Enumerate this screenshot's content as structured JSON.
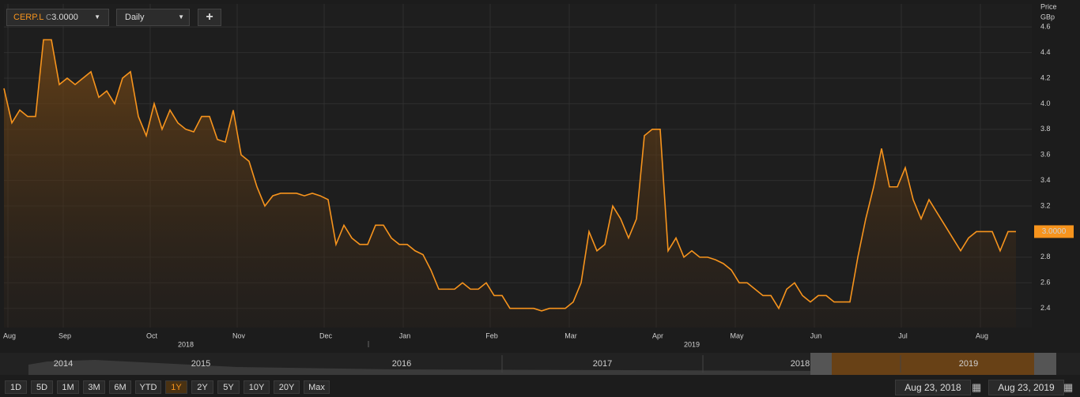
{
  "header": {
    "ticker": "CERP.L",
    "close_label": "C",
    "close_value": "3.0000",
    "interval": "Daily",
    "add_button": "+"
  },
  "chart_data": {
    "type": "line",
    "y_axis_title": [
      "Price",
      "GBp"
    ],
    "categories": [
      null,
      "Aug",
      null,
      null,
      null,
      null,
      null,
      null,
      "Sep",
      null,
      null,
      null,
      null,
      null,
      null,
      null,
      null,
      null,
      null,
      "Oct",
      null,
      null,
      null,
      null,
      null,
      null,
      null,
      null,
      null,
      null,
      "Nov",
      null,
      null,
      null,
      null,
      null,
      null,
      null,
      null,
      null,
      null,
      "Dec",
      null,
      null,
      null,
      null,
      null,
      null,
      null,
      null,
      null,
      "Jan",
      null,
      null,
      null,
      null,
      null,
      null,
      null,
      null,
      null,
      null,
      "Feb",
      null,
      null,
      null,
      null,
      null,
      null,
      null,
      null,
      null,
      "Mar",
      null,
      null,
      null,
      null,
      null,
      null,
      null,
      null,
      null,
      null,
      "Apr",
      null,
      null,
      null,
      null,
      null,
      null,
      null,
      null,
      null,
      "May",
      null,
      null,
      null,
      null,
      null,
      null,
      null,
      null,
      null,
      "Jun",
      null,
      null,
      null,
      null,
      null,
      null,
      null,
      null,
      null,
      null,
      "Jul",
      null,
      null,
      null,
      null,
      null,
      null,
      null,
      null,
      null,
      "Aug",
      null,
      null,
      null,
      null
    ],
    "year_labels": [
      null,
      null,
      null,
      null,
      null,
      null,
      null,
      null,
      null,
      null,
      null,
      null,
      null,
      null,
      null,
      null,
      null,
      null,
      null,
      null,
      null,
      null,
      null,
      "2018",
      null,
      null,
      null,
      null,
      null,
      null,
      null,
      null,
      null,
      null,
      null,
      null,
      null,
      null,
      null,
      null,
      null,
      null,
      null,
      null,
      null,
      null,
      null,
      null,
      null,
      null,
      null,
      null,
      null,
      null,
      null,
      null,
      null,
      null,
      null,
      null,
      null,
      null,
      null,
      null,
      null,
      null,
      null,
      null,
      null,
      null,
      null,
      null,
      null,
      null,
      null,
      null,
      null,
      null,
      null,
      null,
      null,
      null,
      null,
      null,
      null,
      null,
      null,
      "2019",
      null,
      null,
      null,
      null,
      null,
      null,
      null,
      null,
      null,
      null,
      null,
      null,
      null,
      null,
      null,
      null,
      null,
      null,
      null,
      null,
      null,
      null,
      null,
      null,
      null,
      null,
      null,
      null,
      null,
      null,
      null,
      null,
      null,
      null,
      null,
      null,
      null,
      null,
      null,
      null,
      null,
      null,
      null,
      null,
      null
    ],
    "series": [
      {
        "name": "CERP.L",
        "color": "#f7941d",
        "values": [
          4.12,
          3.85,
          3.95,
          3.9,
          3.9,
          4.5,
          4.5,
          4.15,
          4.2,
          4.15,
          4.2,
          4.25,
          4.05,
          4.1,
          4.0,
          4.2,
          4.25,
          3.9,
          3.75,
          4.0,
          3.8,
          3.95,
          3.85,
          3.8,
          3.78,
          3.9,
          3.9,
          3.72,
          3.7,
          3.95,
          3.6,
          3.55,
          3.35,
          3.2,
          3.28,
          3.3,
          3.3,
          3.3,
          3.28,
          3.3,
          3.28,
          3.25,
          2.9,
          3.05,
          2.95,
          2.9,
          2.9,
          3.05,
          3.05,
          2.95,
          2.9,
          2.9,
          2.85,
          2.82,
          2.7,
          2.55,
          2.55,
          2.55,
          2.6,
          2.55,
          2.55,
          2.6,
          2.5,
          2.5,
          2.4,
          2.4,
          2.4,
          2.4,
          2.38,
          2.4,
          2.4,
          2.4,
          2.45,
          2.6,
          3.0,
          2.85,
          2.9,
          3.2,
          3.1,
          2.95,
          3.1,
          3.75,
          3.8,
          3.8,
          2.85,
          2.95,
          2.8,
          2.85,
          2.8,
          2.8,
          2.78,
          2.75,
          2.7,
          2.6,
          2.6,
          2.55,
          2.5,
          2.5,
          2.4,
          2.55,
          2.6,
          2.5,
          2.45,
          2.5,
          2.5,
          2.45,
          2.45,
          2.45,
          2.8,
          3.1,
          3.35,
          3.65,
          3.35,
          3.35,
          3.5,
          3.25,
          3.1,
          3.25,
          3.15,
          3.05,
          2.95,
          2.85,
          2.95,
          3.0,
          3.0,
          3.0,
          2.85,
          3.0,
          3.0
        ]
      }
    ],
    "last_value_label": "3.0000",
    "ylim": [
      2.25,
      4.78
    ],
    "yticks": [
      2.4,
      2.6,
      2.8,
      3.2,
      3.4,
      3.6,
      3.8,
      {
        "value": 4,
        "label": "4.0"
      },
      4.2,
      4.4,
      4.6
    ],
    "grid": true
  },
  "navigator": {
    "years": [
      "2014",
      "2015",
      "2016",
      "2017",
      "2018",
      "2019"
    ]
  },
  "ranges": [
    "1D",
    "5D",
    "1M",
    "3M",
    "6M",
    "YTD",
    "1Y",
    "2Y",
    "5Y",
    "10Y",
    "20Y",
    "Max"
  ],
  "selected_range": "1Y",
  "dates": {
    "from": "Aug 23, 2018",
    "to": "Aug 23, 2019"
  }
}
